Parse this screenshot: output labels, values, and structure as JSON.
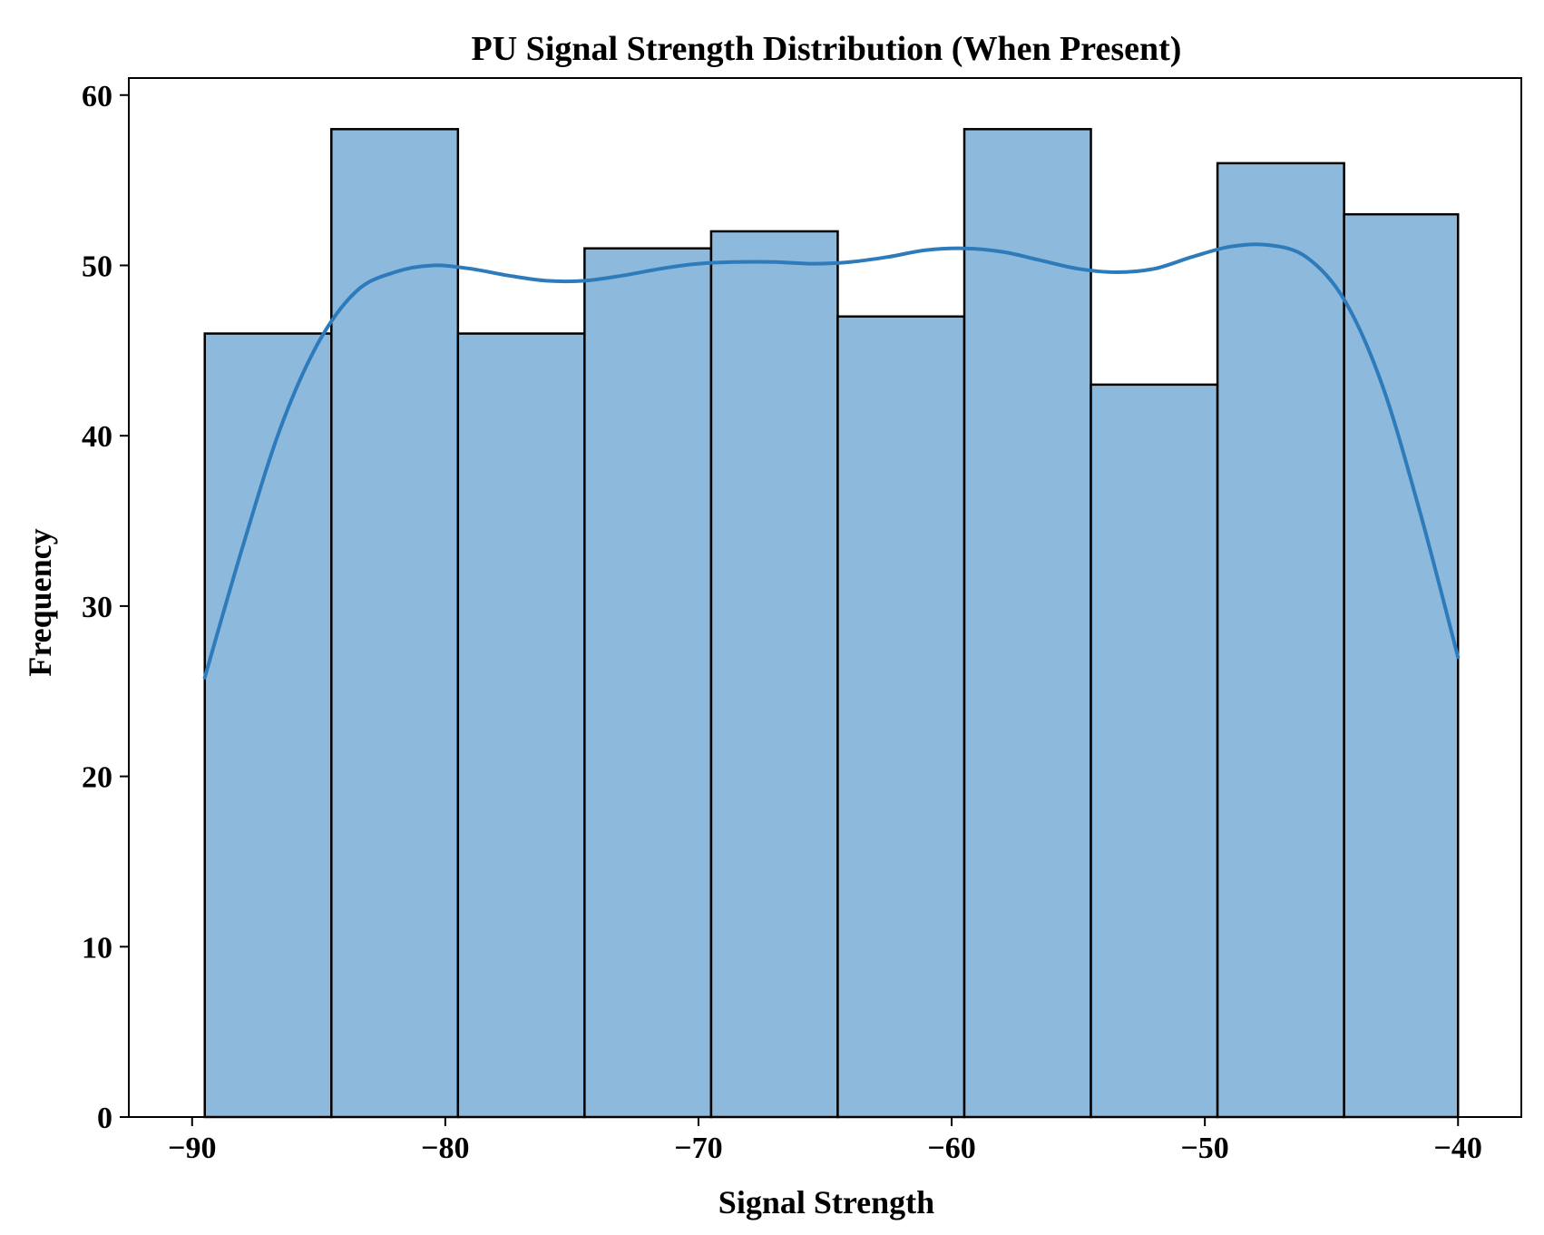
{
  "chart_data": {
    "type": "bar",
    "subtype": "histogram",
    "title": "PU Signal Strength Distribution (When Present)",
    "xlabel": "Signal Strength",
    "ylabel": "Frequency",
    "xlim": [
      -92.5,
      -37.5
    ],
    "ylim": [
      0,
      61
    ],
    "xticks": [
      -90,
      -80,
      -70,
      -60,
      -50,
      -40
    ],
    "xtick_labels": [
      "−90",
      "−80",
      "−70",
      "−60",
      "−50",
      "−40"
    ],
    "yticks": [
      0,
      10,
      20,
      30,
      40,
      50,
      60
    ],
    "ytick_labels": [
      "0",
      "10",
      "20",
      "30",
      "40",
      "50",
      "60"
    ],
    "bins": [
      {
        "start": -89.5,
        "end": -84.5,
        "count": 46
      },
      {
        "start": -84.5,
        "end": -79.5,
        "count": 58
      },
      {
        "start": -79.5,
        "end": -74.5,
        "count": 46
      },
      {
        "start": -74.5,
        "end": -69.5,
        "count": 51
      },
      {
        "start": -69.5,
        "end": -64.5,
        "count": 52
      },
      {
        "start": -64.5,
        "end": -59.5,
        "count": 47
      },
      {
        "start": -59.5,
        "end": -54.5,
        "count": 58
      },
      {
        "start": -54.5,
        "end": -49.5,
        "count": 43
      },
      {
        "start": -49.5,
        "end": -44.5,
        "count": 56
      },
      {
        "start": -44.5,
        "end": -40.0,
        "count": 53
      }
    ],
    "kde": {
      "x": [
        -89.5,
        -88,
        -86.5,
        -85,
        -83.5,
        -82,
        -80.5,
        -79,
        -77.5,
        -76,
        -74.5,
        -73,
        -71.5,
        -70,
        -68.5,
        -67,
        -65.5,
        -64,
        -62.5,
        -61,
        -59.5,
        -58,
        -56.5,
        -55,
        -53.5,
        -52,
        -50.5,
        -49,
        -47.5,
        -46,
        -44.5,
        -43,
        -41.5,
        -40
      ],
      "y": [
        25.8,
        33.5,
        40.5,
        45.5,
        48.5,
        49.6,
        50.0,
        49.8,
        49.4,
        49.1,
        49.1,
        49.4,
        49.8,
        50.1,
        50.2,
        50.2,
        50.1,
        50.2,
        50.5,
        50.9,
        51.0,
        50.8,
        50.3,
        49.8,
        49.6,
        49.8,
        50.5,
        51.1,
        51.2,
        50.5,
        48.0,
        43.0,
        35.5,
        27.0
      ]
    },
    "colors": {
      "bar_fill": "#8db9dc",
      "bar_edge": "#000000",
      "kde_line": "#2e7bbb"
    },
    "grid": false,
    "legend": "none"
  }
}
